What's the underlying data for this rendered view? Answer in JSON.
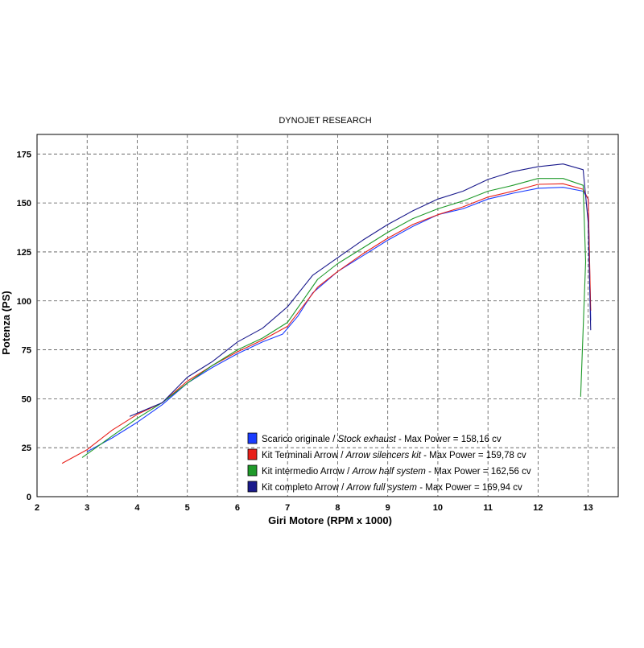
{
  "chart_data": {
    "type": "line",
    "title": "DYNOJET RESEARCH",
    "xlabel": "Giri Motore (RPM x 1000)",
    "ylabel": "Potenza (PS)",
    "xlim": [
      2,
      13.6
    ],
    "ylim": [
      0,
      185
    ],
    "xticks": [
      "2",
      "3",
      "4",
      "5",
      "6",
      "7",
      "8",
      "9",
      "10",
      "11",
      "12",
      "13"
    ],
    "yticks": [
      "0",
      "25",
      "50",
      "75",
      "100",
      "125",
      "150",
      "175"
    ],
    "grid": true,
    "legend_position": "bottom-right",
    "series": [
      {
        "name": "Scarico originale",
        "name_en": "Stock exhaust",
        "max_label": "- Max Power = 158,16 cv",
        "color": "#1a3cff",
        "x": [
          3.0,
          3.5,
          4.0,
          4.5,
          5.0,
          5.5,
          6.0,
          6.5,
          6.9,
          7.2,
          7.5,
          8.0,
          8.5,
          9.0,
          9.5,
          10.0,
          10.5,
          11.0,
          11.5,
          12.0,
          12.5,
          12.9,
          13.0,
          13.05
        ],
        "y": [
          23,
          30,
          38,
          47,
          58,
          66,
          73,
          79,
          83,
          92,
          104,
          115,
          123,
          131,
          138,
          144,
          147,
          152,
          155,
          157.5,
          158,
          156,
          152,
          90
        ]
      },
      {
        "name": "Kit Terminali Arrow",
        "name_en": "Arrow silencers kit",
        "max_label": "- Max Power = 159,78 cv",
        "color": "#e8201a",
        "x": [
          2.5,
          3.0,
          3.5,
          4.0,
          4.5,
          5.0,
          5.5,
          6.0,
          6.5,
          7.0,
          7.3,
          7.6,
          8.0,
          8.5,
          9.0,
          9.5,
          10.0,
          10.5,
          11.0,
          11.5,
          12.0,
          12.5,
          12.9,
          13.0,
          13.05
        ],
        "y": [
          17,
          24,
          34,
          42,
          48,
          59,
          67,
          74,
          80,
          87,
          97,
          107,
          115,
          124,
          132,
          139,
          144,
          148,
          153,
          156,
          159.5,
          159.8,
          157,
          152,
          95
        ]
      },
      {
        "name": "Kit intermedio Arrow",
        "name_en": "Arrow half system",
        "max_label": "- Max Power = 162,56 cv",
        "color": "#1f9a2a",
        "x": [
          2.9,
          3.5,
          4.0,
          4.5,
          5.0,
          5.5,
          6.0,
          6.5,
          7.0,
          7.3,
          7.6,
          8.0,
          8.5,
          9.0,
          9.5,
          10.0,
          10.5,
          11.0,
          11.5,
          12.0,
          12.5,
          12.9,
          12.95,
          12.85
        ],
        "y": [
          20,
          31,
          40,
          48,
          58,
          67,
          75,
          81,
          89,
          100,
          111,
          119,
          127,
          135,
          142,
          147,
          151,
          156,
          159,
          162.5,
          162.5,
          159,
          120,
          51
        ]
      },
      {
        "name": "Kit completo Arrow",
        "name_en": "Arrow full system",
        "max_label": "- Max Power = 169,94 cv",
        "color": "#1a1a8c",
        "x": [
          3.85,
          4.5,
          5.0,
          5.5,
          6.0,
          6.5,
          7.0,
          7.5,
          8.0,
          8.5,
          9.0,
          9.5,
          10.0,
          10.5,
          11.0,
          11.5,
          12.0,
          12.5,
          12.9,
          13.0,
          13.05
        ],
        "y": [
          41,
          48,
          61,
          69,
          79,
          86,
          97,
          113,
          122,
          131,
          139,
          146,
          152,
          156,
          162,
          166,
          168.5,
          169.9,
          167,
          140,
          85
        ]
      }
    ]
  }
}
